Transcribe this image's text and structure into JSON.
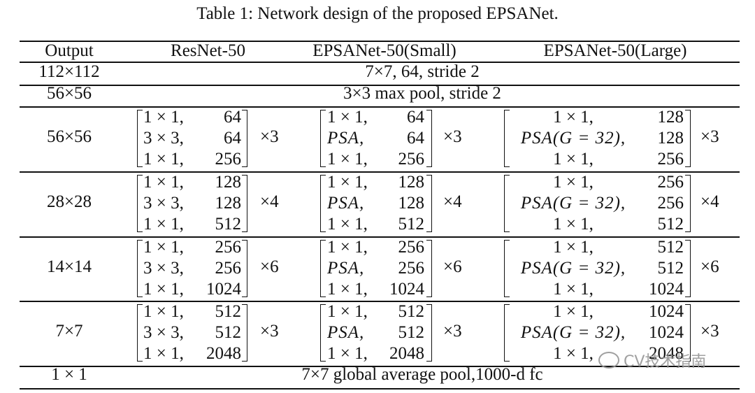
{
  "table": {
    "caption": "Table 1: Network design of the proposed EPSANet.",
    "headers": [
      "Output",
      "ResNet-50",
      "EPSANet-50(Small)",
      "EPSANet-50(Large)"
    ],
    "rows": [
      {
        "output": "112×112",
        "text": "7×7, 64, stride 2"
      },
      {
        "output": "56×56",
        "text": "3×3 max pool, stride 2"
      },
      {
        "output": "56×56",
        "resnet": {
          "rows": [
            [
              "1 × 1,",
              "64"
            ],
            [
              "3 × 3,",
              "64"
            ],
            [
              "1 × 1,",
              "256"
            ]
          ],
          "repeat": "×3"
        },
        "small": {
          "rows": [
            [
              "1 × 1,",
              "64"
            ],
            [
              "PSA,",
              "64"
            ],
            [
              "1 × 1,",
              "256"
            ]
          ],
          "repeat": "×3"
        },
        "large": {
          "rows": [
            [
              "1 × 1,",
              "128"
            ],
            [
              "PSA(G = 32),",
              "128"
            ],
            [
              "1 × 1,",
              "256"
            ]
          ],
          "repeat": "×3"
        }
      },
      {
        "output": "28×28",
        "resnet": {
          "rows": [
            [
              "1 × 1,",
              "128"
            ],
            [
              "3 × 3,",
              "128"
            ],
            [
              "1 × 1,",
              "512"
            ]
          ],
          "repeat": "×4"
        },
        "small": {
          "rows": [
            [
              "1 × 1,",
              "128"
            ],
            [
              "PSA,",
              "128"
            ],
            [
              "1 × 1,",
              "512"
            ]
          ],
          "repeat": "×4"
        },
        "large": {
          "rows": [
            [
              "1 × 1,",
              "256"
            ],
            [
              "PSA(G = 32),",
              "256"
            ],
            [
              "1 × 1,",
              "512"
            ]
          ],
          "repeat": "×4"
        }
      },
      {
        "output": "14×14",
        "resnet": {
          "rows": [
            [
              "1 × 1,",
              "256"
            ],
            [
              "3 × 3,",
              "256"
            ],
            [
              "1 × 1,",
              "1024"
            ]
          ],
          "repeat": "×6"
        },
        "small": {
          "rows": [
            [
              "1 × 1,",
              "256"
            ],
            [
              "PSA,",
              "256"
            ],
            [
              "1 × 1,",
              "1024"
            ]
          ],
          "repeat": "×6"
        },
        "large": {
          "rows": [
            [
              "1 × 1,",
              "512"
            ],
            [
              "PSA(G = 32),",
              "512"
            ],
            [
              "1 × 1,",
              "1024"
            ]
          ],
          "repeat": "×6"
        }
      },
      {
        "output": "7×7",
        "resnet": {
          "rows": [
            [
              "1 × 1,",
              "512"
            ],
            [
              "3 × 3,",
              "512"
            ],
            [
              "1 × 1,",
              "2048"
            ]
          ],
          "repeat": "×3"
        },
        "small": {
          "rows": [
            [
              "1 × 1,",
              "512"
            ],
            [
              "PSA,",
              "512"
            ],
            [
              "1 × 1,",
              "2048"
            ]
          ],
          "repeat": "×3"
        },
        "large": {
          "rows": [
            [
              "1 × 1,",
              "1024"
            ],
            [
              "PSA(G = 32),",
              "1024"
            ],
            [
              "1 × 1,",
              "2048"
            ]
          ],
          "repeat": "×3"
        }
      },
      {
        "output": "1 × 1",
        "text": "7×7 global average pool,1000-d fc"
      }
    ]
  },
  "watermark": {
    "text": "CV技术指南",
    "icon": "wechat-icon"
  }
}
